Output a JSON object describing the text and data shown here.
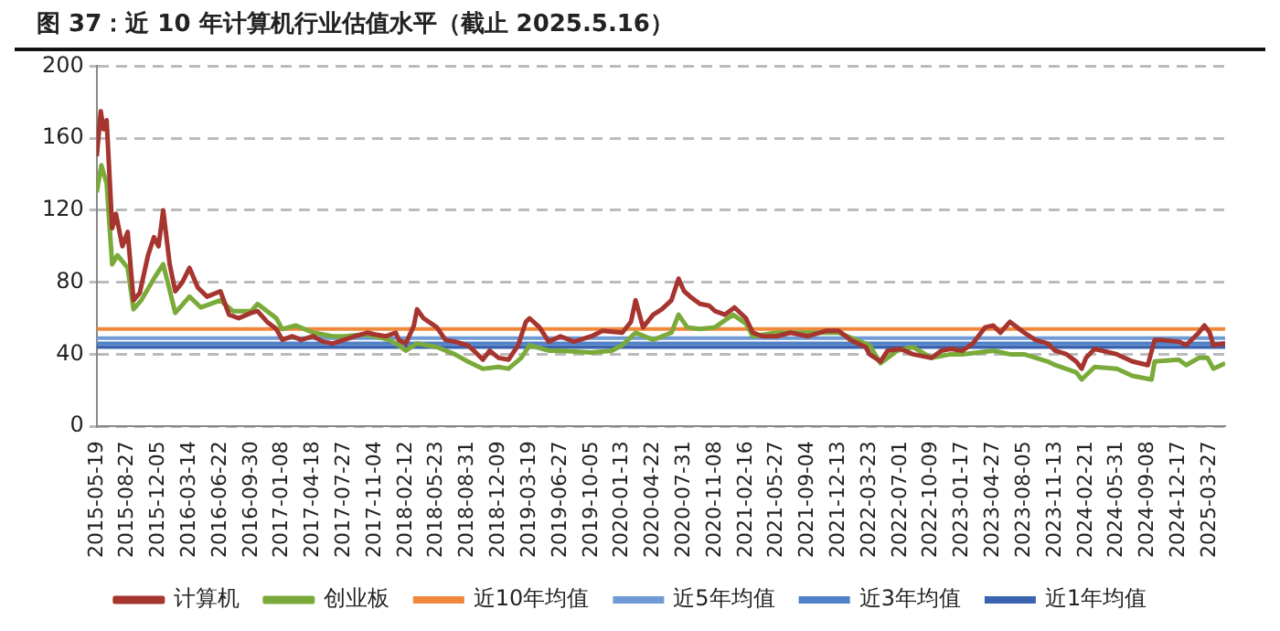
{
  "chart_data": {
    "type": "line",
    "title": "图 37：近 10 年计算机行业估值水平（截止 2025.5.16）",
    "xlim": [
      "2015-05-19",
      "2025-05-16"
    ],
    "xticks": [
      "2015-05-19",
      "2015-08-27",
      "2015-12-05",
      "2016-03-14",
      "2016-06-22",
      "2016-09-30",
      "2017-01-08",
      "2017-04-18",
      "2017-07-27",
      "2017-11-04",
      "2018-02-12",
      "2018-05-23",
      "2018-08-31",
      "2018-12-09",
      "2019-03-19",
      "2019-06-27",
      "2019-10-05",
      "2020-01-13",
      "2020-04-22",
      "2020-07-31",
      "2020-11-08",
      "2021-02-16",
      "2021-05-27",
      "2021-09-04",
      "2021-12-13",
      "2022-03-23",
      "2022-07-01",
      "2022-10-09",
      "2023-01-17",
      "2023-04-27",
      "2023-08-05",
      "2023-11-13",
      "2024-02-21",
      "2024-05-31",
      "2024-09-08",
      "2024-12-17",
      "2025-03-27"
    ],
    "ylim": [
      0,
      200
    ],
    "yticks": [
      0,
      40,
      80,
      120,
      160,
      200
    ],
    "grid": "y",
    "legend": "bottom",
    "marker": "none",
    "series": [
      {
        "name": "计算机",
        "color": "#a6342f",
        "x": [
          "2015-05-19",
          "2015-06-01",
          "2015-06-10",
          "2015-06-20",
          "2015-07-08",
          "2015-07-20",
          "2015-08-10",
          "2015-08-27",
          "2015-09-15",
          "2015-10-05",
          "2015-11-01",
          "2015-11-20",
          "2015-12-05",
          "2015-12-20",
          "2016-01-10",
          "2016-01-28",
          "2016-02-20",
          "2016-03-14",
          "2016-04-10",
          "2016-05-10",
          "2016-06-22",
          "2016-07-20",
          "2016-08-20",
          "2016-09-30",
          "2016-10-20",
          "2016-11-20",
          "2016-12-20",
          "2017-01-08",
          "2017-02-10",
          "2017-03-10",
          "2017-04-18",
          "2017-05-20",
          "2017-06-20",
          "2017-07-27",
          "2017-09-01",
          "2017-10-10",
          "2017-11-04",
          "2017-12-10",
          "2018-01-10",
          "2018-01-20",
          "2018-02-12",
          "2018-03-10",
          "2018-03-20",
          "2018-04-10",
          "2018-05-23",
          "2018-06-20",
          "2018-07-20",
          "2018-08-31",
          "2018-09-20",
          "2018-10-19",
          "2018-11-10",
          "2018-12-09",
          "2019-01-10",
          "2019-02-10",
          "2019-03-07",
          "2019-03-19",
          "2019-04-20",
          "2019-05-20",
          "2019-06-27",
          "2019-08-10",
          "2019-10-05",
          "2019-11-10",
          "2020-01-13",
          "2020-02-10",
          "2020-02-25",
          "2020-03-20",
          "2020-04-22",
          "2020-05-20",
          "2020-06-20",
          "2020-07-13",
          "2020-07-31",
          "2020-08-20",
          "2020-09-20",
          "2020-10-20",
          "2020-11-08",
          "2020-12-10",
          "2021-01-10",
          "2021-02-16",
          "2021-03-10",
          "2021-04-10",
          "2021-05-27",
          "2021-07-10",
          "2021-09-04",
          "2021-11-01",
          "2021-12-13",
          "2022-01-20",
          "2022-03-10",
          "2022-03-23",
          "2022-04-27",
          "2022-05-20",
          "2022-07-01",
          "2022-08-10",
          "2022-10-09",
          "2022-11-10",
          "2022-12-10",
          "2023-01-17",
          "2023-02-20",
          "2023-04-01",
          "2023-04-27",
          "2023-05-20",
          "2023-06-20",
          "2023-08-05",
          "2023-09-10",
          "2023-10-20",
          "2023-11-13",
          "2023-12-20",
          "2024-01-20",
          "2024-02-07",
          "2024-02-21",
          "2024-03-20",
          "2024-05-31",
          "2024-07-20",
          "2024-09-08",
          "2024-09-30",
          "2024-10-20",
          "2024-12-17",
          "2025-01-10",
          "2025-02-20",
          "2025-03-10",
          "2025-03-27",
          "2025-04-08",
          "2025-05-16"
        ],
        "values": [
          150,
          175,
          165,
          170,
          110,
          118,
          100,
          108,
          70,
          74,
          95,
          105,
          100,
          120,
          90,
          75,
          80,
          88,
          77,
          72,
          75,
          62,
          60,
          63,
          64,
          58,
          54,
          48,
          50,
          48,
          50,
          47,
          46,
          48,
          50,
          52,
          51,
          50,
          52,
          48,
          46,
          56,
          65,
          60,
          55,
          48,
          47,
          45,
          42,
          37,
          42,
          38,
          37,
          45,
          58,
          60,
          55,
          47,
          50,
          47,
          50,
          53,
          52,
          58,
          70,
          55,
          62,
          65,
          70,
          82,
          75,
          72,
          68,
          67,
          64,
          62,
          66,
          60,
          52,
          50,
          50,
          52,
          50,
          53,
          53,
          48,
          44,
          40,
          36,
          42,
          43,
          40,
          38,
          42,
          43,
          42,
          46,
          55,
          56,
          52,
          58,
          52,
          48,
          46,
          42,
          40,
          36,
          32,
          38,
          43,
          40,
          36,
          34,
          48,
          48,
          47,
          45,
          52,
          56,
          52,
          45,
          46
        ]
      },
      {
        "name": "创业板",
        "color": "#7aab3a",
        "x": [
          "2015-05-19",
          "2015-06-03",
          "2015-06-20",
          "2015-07-08",
          "2015-07-25",
          "2015-08-27",
          "2015-09-15",
          "2015-10-10",
          "2015-11-20",
          "2015-12-20",
          "2016-01-28",
          "2016-03-14",
          "2016-04-20",
          "2016-06-22",
          "2016-08-01",
          "2016-09-30",
          "2016-10-20",
          "2016-11-20",
          "2016-12-20",
          "2017-01-08",
          "2017-02-20",
          "2017-04-18",
          "2017-06-20",
          "2017-07-27",
          "2017-10-01",
          "2017-11-04",
          "2017-12-20",
          "2018-01-20",
          "2018-02-12",
          "2018-03-20",
          "2018-05-23",
          "2018-07-20",
          "2018-08-31",
          "2018-10-19",
          "2018-12-09",
          "2019-01-10",
          "2019-02-20",
          "2019-03-19",
          "2019-05-20",
          "2019-06-27",
          "2019-10-05",
          "2019-12-10",
          "2020-01-13",
          "2020-02-25",
          "2020-04-22",
          "2020-06-20",
          "2020-07-13",
          "2020-08-10",
          "2020-09-20",
          "2020-11-08",
          "2021-01-05",
          "2021-02-16",
          "2021-03-10",
          "2021-05-27",
          "2021-09-04",
          "2021-12-13",
          "2022-03-23",
          "2022-04-27",
          "2022-06-20",
          "2022-08-10",
          "2022-10-09",
          "2022-12-10",
          "2023-01-17",
          "2023-04-27",
          "2023-06-20",
          "2023-08-05",
          "2023-10-20",
          "2023-11-13",
          "2024-01-20",
          "2024-02-07",
          "2024-03-20",
          "2024-05-31",
          "2024-07-20",
          "2024-09-20",
          "2024-09-30",
          "2024-12-17",
          "2025-01-10",
          "2025-02-20",
          "2025-03-20",
          "2025-04-08",
          "2025-05-16"
        ],
        "values": [
          130,
          145,
          135,
          90,
          95,
          88,
          65,
          70,
          82,
          90,
          63,
          72,
          66,
          70,
          64,
          64,
          68,
          64,
          60,
          54,
          56,
          52,
          50,
          50,
          51,
          50,
          48,
          45,
          42,
          46,
          44,
          40,
          36,
          32,
          33,
          32,
          38,
          45,
          42,
          42,
          41,
          42,
          45,
          52,
          48,
          52,
          62,
          55,
          54,
          55,
          62,
          57,
          50,
          52,
          52,
          52,
          45,
          35,
          42,
          44,
          38,
          40,
          40,
          42,
          40,
          40,
          36,
          34,
          30,
          26,
          33,
          32,
          28,
          26,
          36,
          37,
          34,
          38,
          38,
          32,
          35
        ]
      }
    ],
    "ref_lines": [
      {
        "axis": "y",
        "value": 54,
        "label": "近10年均值",
        "color": "#f0883c"
      },
      {
        "axis": "y",
        "value": 49,
        "label": "近5年均值",
        "color": "#6f9ad6"
      },
      {
        "axis": "y",
        "value": 46,
        "label": "近3年均值",
        "color": "#4f80c8"
      },
      {
        "axis": "y",
        "value": 44,
        "label": "近1年均值",
        "color": "#3a64b0"
      }
    ]
  }
}
